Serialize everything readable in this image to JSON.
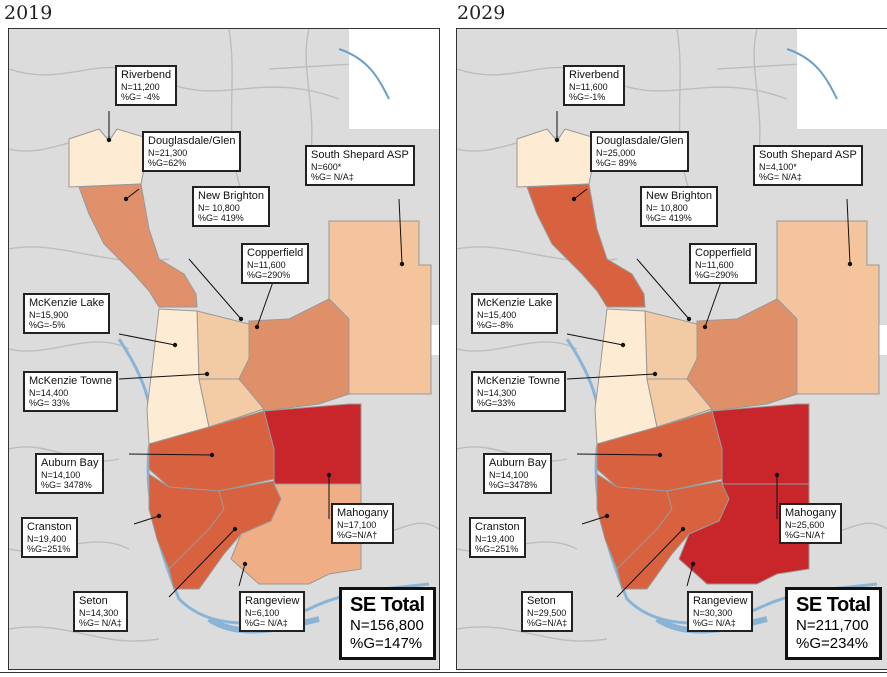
{
  "maps": [
    {
      "year": "2019",
      "communities": {
        "riverbend": {
          "name": "Riverbend",
          "n": "N=11,200",
          "g": "%G= -4%"
        },
        "douglasdale": {
          "name": "Douglasdale/Glen",
          "n": "N=21,300",
          "g": "%G=62%"
        },
        "new_brighton": {
          "name": "New Brighton",
          "n": "N= 10,800",
          "g": "%G= 419%"
        },
        "south_shepard": {
          "name": "South Shepard ASP",
          "n": "N=600*",
          "g": "%G= N/A‡"
        },
        "copperfield": {
          "name": "Copperfield",
          "n": "N=11,600",
          "g": "%G=290%"
        },
        "mckenzie_lake": {
          "name": "McKenzie Lake",
          "n": "N=15,900",
          "g": "%G=-5%"
        },
        "mckenzie_towne": {
          "name": "McKenzie Towne",
          "n": "N=14,400",
          "g": "%G= 33%"
        },
        "auburn_bay": {
          "name": "Auburn Bay",
          "n": "N=14,100",
          "g": "%G= 3478%"
        },
        "mahogany": {
          "name": "Mahogany",
          "n": "N=17,100",
          "g": "%G=N/A†"
        },
        "cranston": {
          "name": "Cranston",
          "n": "N=19,400",
          "g": "%G=251%"
        },
        "seton": {
          "name": "Seton",
          "n": "N=14,300",
          "g": "%G= N/A‡"
        },
        "rangeview": {
          "name": "Rangeview",
          "n": "N=6,100",
          "g": "%G= N/A‡"
        }
      },
      "total": {
        "title": "SE Total",
        "n": "N=156,800",
        "g": "%G=147%"
      },
      "fills": {
        "riverbend": "#fdebd3",
        "douglasdale": "#e0906a",
        "south_shepard": "#f4c49c",
        "new_brighton": "#f2caa4",
        "copperfield": "#df9068",
        "mckenzie_lake": "#fdebd3",
        "mckenzie_towne": "#f3cba5",
        "auburn_bay": "#d8623f",
        "mahogany": "#c8262b",
        "cranston": "#d8623f",
        "seton": "#d8623f",
        "rangeview": "#efae86"
      }
    },
    {
      "year": "2029",
      "communities": {
        "riverbend": {
          "name": "Riverbend",
          "n": "N=11,600",
          "g": "%G=-1%"
        },
        "douglasdale": {
          "name": "Douglasdale/Glen",
          "n": "N=25,000",
          "g": "%G= 89%"
        },
        "new_brighton": {
          "name": "New Brighton",
          "n": "N= 10,800",
          "g": "%G= 419%"
        },
        "south_shepard": {
          "name": "South Shepard ASP",
          "n": "N=4,100*",
          "g": "%G= N/A‡"
        },
        "copperfield": {
          "name": "Copperfield",
          "n": "N=11,600",
          "g": "%G=290%"
        },
        "mckenzie_lake": {
          "name": "McKenzie Lake",
          "n": "N=15,400",
          "g": "%G=-8%"
        },
        "mckenzie_towne": {
          "name": "McKenzie Towne",
          "n": "N=14,300",
          "g": "%G=33%"
        },
        "auburn_bay": {
          "name": "Auburn Bay",
          "n": "N=14,100",
          "g": "%G=3478%"
        },
        "mahogany": {
          "name": "Mahogany",
          "n": "N=25,600",
          "g": "%G=N/A†"
        },
        "cranston": {
          "name": "Cranston",
          "n": "N=19,400",
          "g": "%G=251%"
        },
        "seton": {
          "name": "Seton",
          "n": "N=29,500",
          "g": "%G=N/A‡"
        },
        "rangeview": {
          "name": "Rangeview",
          "n": "N=30,300",
          "g": "%G= N/A‡"
        }
      },
      "total": {
        "title": "SE Total",
        "n": "N=211,700",
        "g": "%G=234%"
      },
      "fills": {
        "riverbend": "#fdebd3",
        "douglasdale": "#d8623f",
        "south_shepard": "#f4c49c",
        "new_brighton": "#f2caa4",
        "copperfield": "#df9068",
        "mckenzie_lake": "#fdebd3",
        "mckenzie_towne": "#f3cba5",
        "auburn_bay": "#d8623f",
        "mahogany": "#c8262b",
        "cranston": "#d8623f",
        "seton": "#d8623f",
        "rangeview": "#c8262b"
      }
    }
  ]
}
